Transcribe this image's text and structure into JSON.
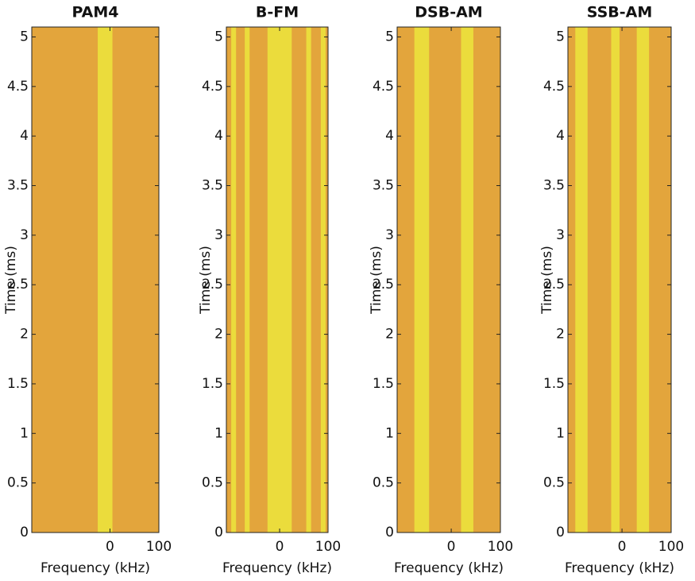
{
  "chart_data": [
    {
      "type": "spectrogram",
      "title": "PAM4",
      "xlabel": "Frequency (kHz)",
      "ylabel": "Time (ms)",
      "xlim": [
        -160,
        100
      ],
      "xticks": [
        0,
        100
      ],
      "ylim": [
        0,
        5.1
      ],
      "yticks": [
        0,
        0.5,
        1,
        1.5,
        2,
        2.5,
        3,
        3.5,
        4,
        4.5,
        5
      ],
      "color": "#e3a53c",
      "band_color": "#ebdc3c",
      "bands": [
        [
          -25,
          5
        ]
      ]
    },
    {
      "type": "spectrogram",
      "title": "B-FM",
      "xlabel": "Frequency (kHz)",
      "ylabel": "Time (ms)",
      "xlim": [
        -110,
        100
      ],
      "xticks": [
        0,
        100
      ],
      "ylim": [
        0,
        5.1
      ],
      "yticks": [
        0,
        0.5,
        1,
        1.5,
        2,
        2.5,
        3,
        3.5,
        4,
        4.5,
        5
      ],
      "color": "#e3a53c",
      "band_color": "#ebdc3c",
      "bands": [
        [
          -100,
          -90
        ],
        [
          -72,
          -62
        ],
        [
          -25,
          25
        ],
        [
          55,
          65
        ],
        [
          85,
          95
        ]
      ]
    },
    {
      "type": "spectrogram",
      "title": "DSB-AM",
      "xlabel": "Frequency (kHz)",
      "ylabel": "Time (ms)",
      "xlim": [
        -110,
        100
      ],
      "xticks": [
        0,
        100
      ],
      "ylim": [
        0,
        5.1
      ],
      "yticks": [
        0,
        0.5,
        1,
        1.5,
        2,
        2.5,
        3,
        3.5,
        4,
        4.5,
        5
      ],
      "color": "#e3a53c",
      "band_color": "#ebdc3c",
      "bands": [
        [
          -75,
          -45
        ],
        [
          20,
          45
        ]
      ]
    },
    {
      "type": "spectrogram",
      "title": "SSB-AM",
      "xlabel": "Frequency (kHz)",
      "ylabel": "Time (ms)",
      "xlim": [
        -110,
        100
      ],
      "xticks": [
        0,
        100
      ],
      "ylim": [
        0,
        5.1
      ],
      "yticks": [
        0,
        0.5,
        1,
        1.5,
        2,
        2.5,
        3,
        3.5,
        4,
        4.5,
        5
      ],
      "color": "#e3a53c",
      "band_color": "#ebdc3c",
      "bands": [
        [
          -95,
          -70
        ],
        [
          -22,
          -5
        ],
        [
          30,
          55
        ]
      ]
    }
  ]
}
